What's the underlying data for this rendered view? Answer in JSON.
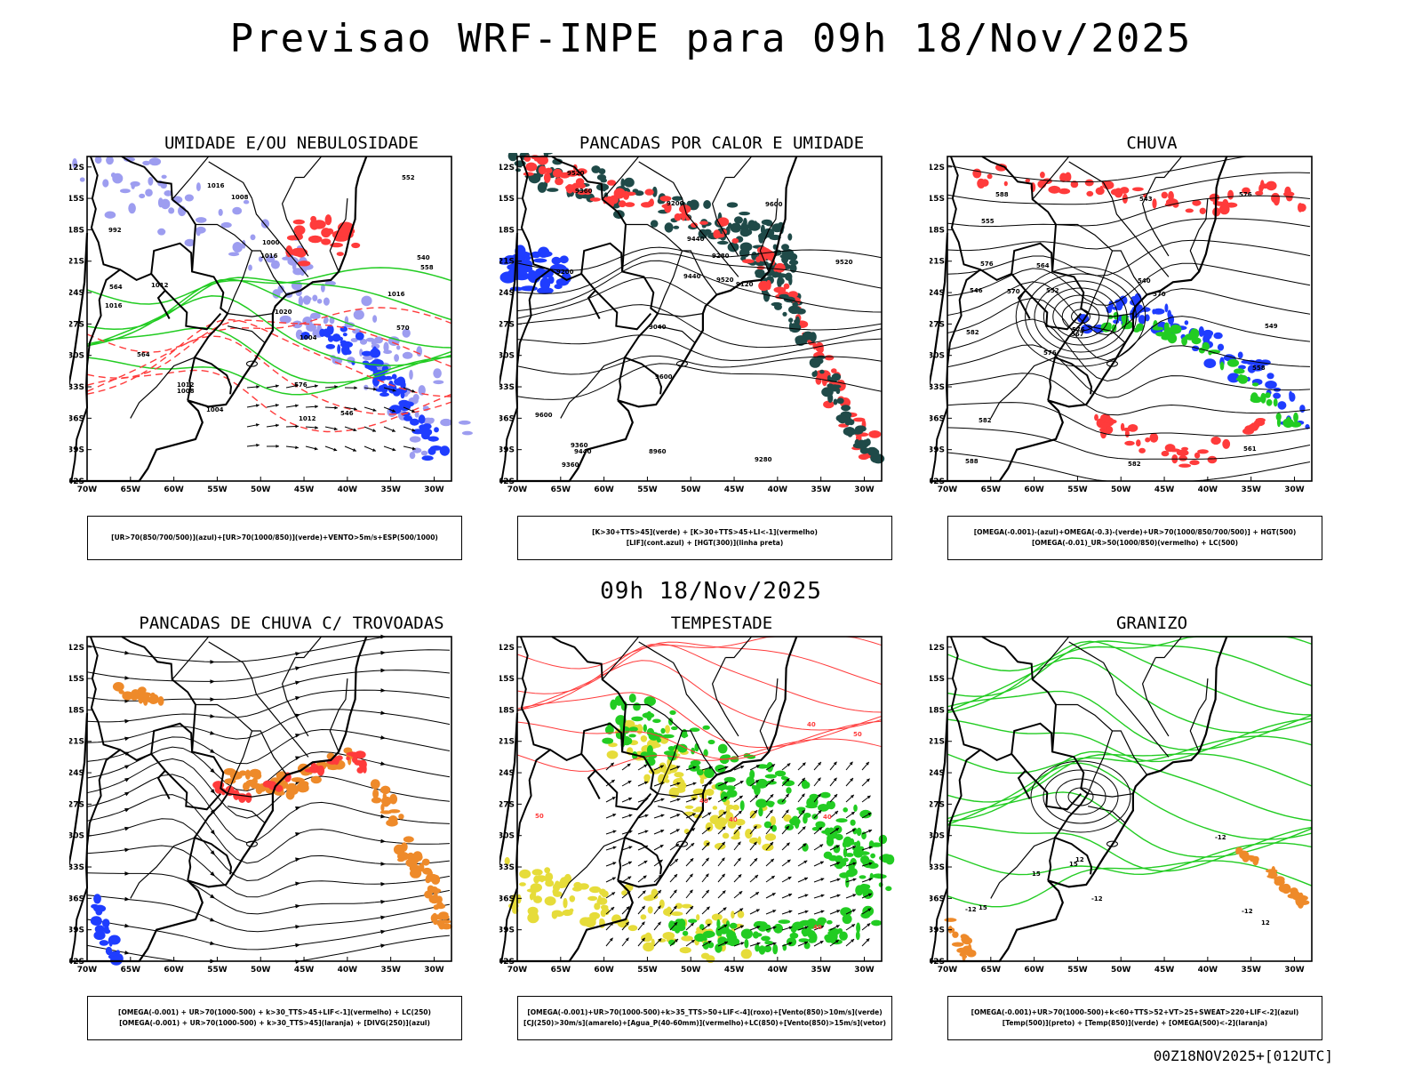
{
  "main_title": "Previsao WRF-INPE  para 09h 18/Nov/2025",
  "mid_title": "09h 18/Nov/2025",
  "footer": "00Z18NOV2025+[012UTC]",
  "axes": {
    "lat_labels": [
      "12S",
      "15S",
      "18S",
      "21S",
      "24S",
      "27S",
      "30S",
      "33S",
      "36S",
      "39S",
      "42S"
    ],
    "lon_labels": [
      "70W",
      "65W",
      "60W",
      "55W",
      "50W",
      "45W",
      "40W",
      "35W",
      "30W"
    ]
  },
  "colors": {
    "blue": "#1f3dff",
    "lavender": "#9d9df0",
    "green": "#22cc22",
    "red": "#ff3b3b",
    "teal": "#1f4a48",
    "orange": "#ee8a2a",
    "yellow": "#e6dc3a",
    "black": "#000000"
  },
  "panels": [
    {
      "title": "UMIDADE E/OU NEBULOSIDADE",
      "legend": [
        "[UR>70(850/700/500)](azul)+[UR>70(1000/850)](verde)+VENTO>5m/s+ESP(500/1000)"
      ],
      "contour_labels": [
        "1016",
        "1016",
        "1016",
        "1020",
        "1016",
        "1012",
        "1012",
        "1012",
        "1008",
        "1008",
        "1004",
        "1000",
        "1004",
        "992",
        "576",
        "564",
        "570",
        "564",
        "558",
        "552",
        "546",
        "540"
      ]
    },
    {
      "title": "PANCADAS POR CALOR E UMIDADE",
      "legend": [
        "[K>30+TTS>45](verde) + [K>30+TTS>45+LI<-1](vermelho)",
        "[LIF](cont.azul) + [HGT(300)](linha preta)"
      ],
      "contour_labels": [
        "9600",
        "9520",
        "9440",
        "9600",
        "9600",
        "9360",
        "9520",
        "9520",
        "9440",
        "9440",
        "9360",
        "9360",
        "9280",
        "9280",
        "9200",
        "9200",
        "9120",
        "9040",
        "8960"
      ]
    },
    {
      "title": "CHUVA",
      "legend": [
        "[OMEGA(-0.001)-(azul)+OMEGA(-0.3)-(verde)+UR>70(1000/850/700/500)] + HGT(500)",
        "[OMEGA(-0.01)_UR>50(1000/850)(vermelho) + LC(500)"
      ],
      "contour_labels": [
        "588",
        "576",
        "576",
        "582",
        "582",
        "576",
        "582",
        "576",
        "570",
        "567",
        "570",
        "564",
        "561",
        "558",
        "555",
        "552",
        "549",
        "546",
        "543",
        "540",
        "588"
      ]
    },
    {
      "title": "PANCADAS DE CHUVA C/ TROVOADAS",
      "legend": [
        "[OMEGA(-0.001) + UR>70(1000-500) + k>30_TTS>45+LIF<-1](vermelho) + LC(250)",
        "[OMEGA(-0.001) + UR>70(1000-500) + k>30_TTS>45](laranja) + [DIVG(250)](azul)"
      ],
      "contour_labels": []
    },
    {
      "title": "TEMPESTADE",
      "legend": [
        "[OMEGA(-0.001)+UR>70(1000-500)+k>35_TTS>50+LIF<-4](roxo)+[Vento(850)>10m/s](verde)",
        "[CJ(250)>30m/s](amarelo)+[Agua_P(40-60mm)](vermelho)+LC(850)+[Vento(850)>15m/s](vetor)"
      ],
      "contour_labels": [
        "50",
        "40",
        "40",
        "40",
        "50",
        "40",
        "40"
      ]
    },
    {
      "title": "GRANIZO",
      "legend": [
        "[OMEGA(-0.001)+UR>70(1000-500)+k<60+TTS>52+VT>25+SWEAT>220+LIF<-2](azul)",
        "[Temp(500)](preto) + [Temp(850)](verde) + [OMEGA(500)<-2](laranja)"
      ],
      "contour_labels": [
        "-12",
        "-12",
        "15",
        "15",
        "-12",
        "12",
        "12",
        "15",
        "-12"
      ]
    }
  ]
}
